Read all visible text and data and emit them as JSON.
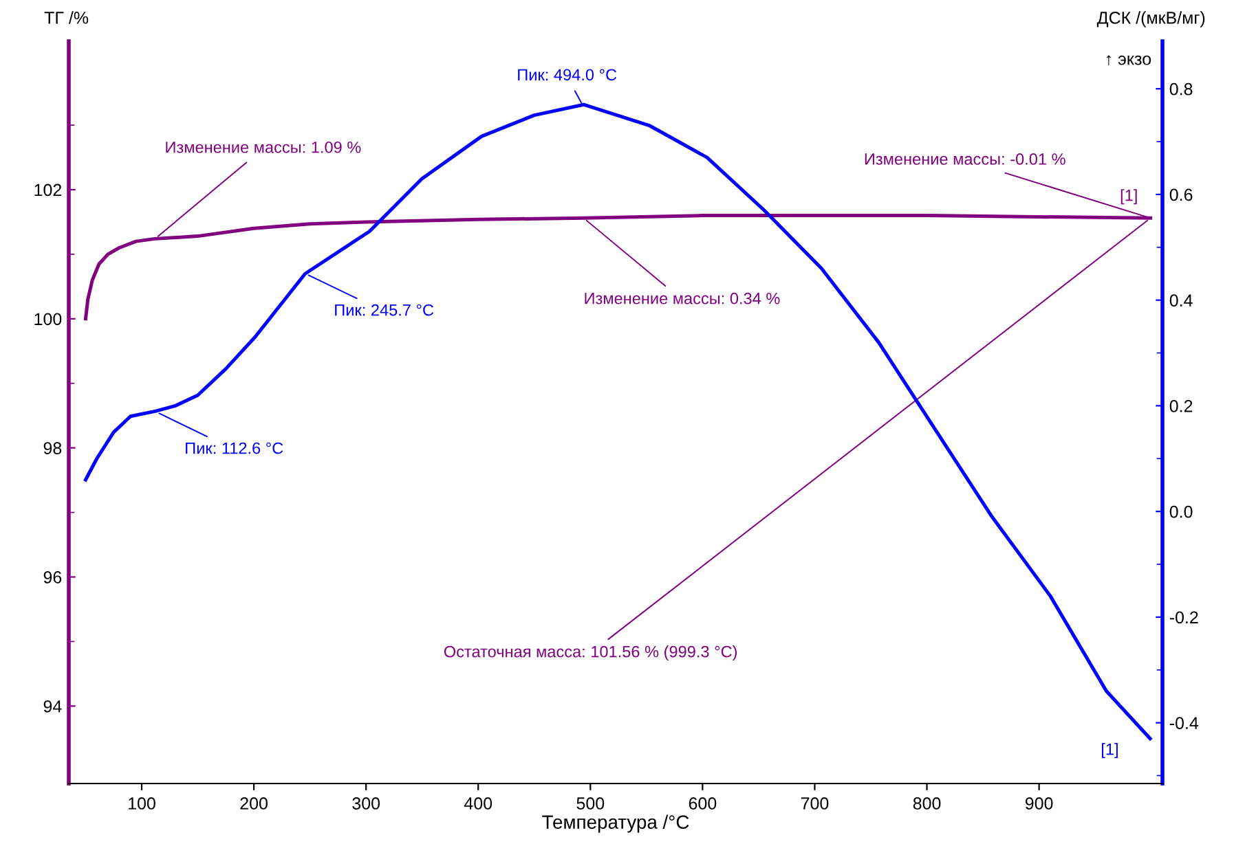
{
  "chart_data": {
    "type": "line",
    "xlabel": "Температура /°C",
    "ylabel": "ТГ /%",
    "y2label": "ДСК /(мкВ/мг)",
    "xlim": [
      35,
      1010
    ],
    "xticks": [
      100,
      200,
      300,
      400,
      500,
      600,
      700,
      800,
      900
    ],
    "ylim": [
      92.8,
      104.3
    ],
    "yticks": [
      94,
      {
        "value": 95,
        "label": null
      },
      96,
      {
        "value": 97,
        "label": null
      },
      98,
      {
        "value": 99,
        "label": null
      },
      100,
      {
        "value": 101,
        "label": null
      },
      102,
      {
        "value": 103,
        "label": null
      }
    ],
    "y2lim": [
      -0.515,
      0.89
    ],
    "y2ticks": [
      {
        "value": -0.5,
        "label": null
      },
      {
        "value": -0.4,
        "label": "-0.4"
      },
      {
        "value": -0.3,
        "label": null
      },
      {
        "value": -0.2,
        "label": "-0.2"
      },
      {
        "value": -0.1,
        "label": null
      },
      {
        "value": 0.0,
        "label": "0.0"
      },
      {
        "value": 0.1,
        "label": null
      },
      {
        "value": 0.2,
        "label": "0.2"
      },
      {
        "value": 0.3,
        "label": null
      },
      {
        "value": 0.4,
        "label": "0.4"
      },
      {
        "value": 0.5,
        "label": null
      },
      {
        "value": 0.6,
        "label": "0.6"
      },
      {
        "value": 0.7,
        "label": null
      },
      {
        "value": 0.8,
        "label": "0.8"
      }
    ],
    "grid": false,
    "legend": false,
    "marker": "none",
    "line_style": "solid",
    "series": [
      {
        "color": "#800080",
        "x": [
          50,
          52,
          56,
          62,
          70,
          80,
          95,
          112,
          150,
          200,
          250,
          300,
          400,
          494,
          600,
          800,
          999.3
        ],
        "values": [
          100.0,
          100.3,
          100.6,
          100.85,
          101.0,
          101.1,
          101.2,
          101.24,
          101.28,
          101.4,
          101.47,
          101.5,
          101.54,
          101.56,
          101.6,
          101.6,
          101.56
        ]
      },
      {
        "color": "#0000ff",
        "axis": "y2",
        "x": [
          50,
          60,
          75,
          90,
          112.6,
          130,
          150,
          175,
          201,
          245.7,
          303,
          350,
          403,
          450,
          494,
          553,
          604,
          655,
          706,
          757,
          809,
          858,
          910,
          960,
          999
        ],
        "values": [
          0.06,
          0.1,
          0.15,
          0.18,
          0.19,
          0.2,
          0.22,
          0.27,
          0.33,
          0.45,
          0.53,
          0.63,
          0.71,
          0.75,
          0.77,
          0.73,
          0.67,
          0.57,
          0.46,
          0.32,
          0.15,
          -0.01,
          -0.16,
          -0.34,
          -0.43
        ]
      }
    ],
    "annotations": [
      {
        "text": "Пик: 494.0 °C",
        "x": 494,
        "y": 103.28
      },
      {
        "text": "Пик: 245.7 °C",
        "x": 245.7,
        "y": 100.7
      },
      {
        "text": "Пик: 112.6 °C",
        "x": 112.6,
        "y": 98.56
      },
      {
        "text": "Изменение массы: 1.09 %",
        "x": 112,
        "y": 101.24
      },
      {
        "text": "Изменение массы: 0.34 %",
        "x": 494,
        "y": 101.56
      },
      {
        "text": "Изменение массы: -0.01 %",
        "x": 999.3,
        "y": 101.56
      },
      {
        "text": "Остаточная масса: 101.56 % (999.3 °C)",
        "x": 999.3,
        "y": 101.56
      },
      {
        "text": "[1]",
        "x": 999.3,
        "y": 101.56
      },
      {
        "text": "[1]",
        "x": 999.3,
        "y": 93.6
      },
      "↑ экзо"
    ]
  }
}
